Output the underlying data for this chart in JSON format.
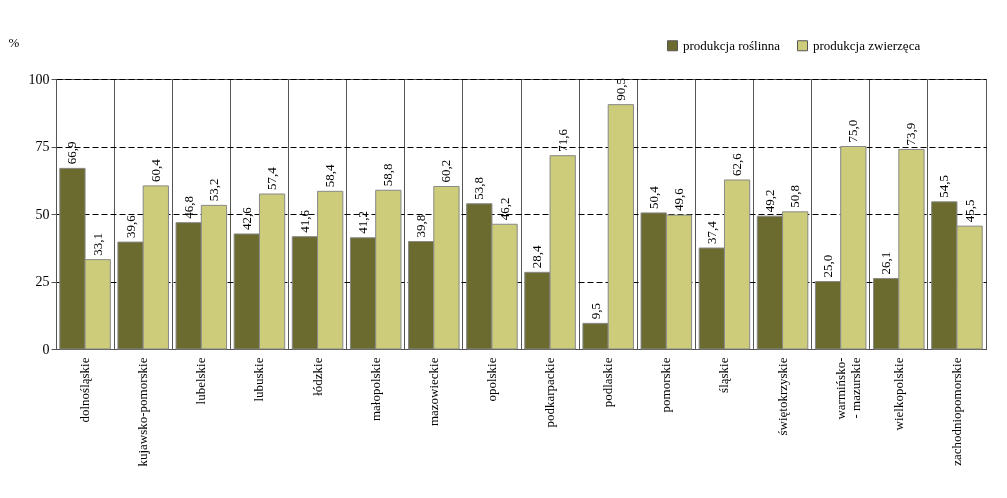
{
  "chart_data": {
    "type": "bar",
    "ylabel": "%",
    "categories": [
      "dolnośląskie",
      "kujawsko-pomorskie",
      "lubelskie",
      "lubuskie",
      "łódzkie",
      "małopolskie",
      "mazowieckie",
      "opolskie",
      "podkarpackie",
      "podlaskie",
      "pomorskie",
      "śląskie",
      "świętokrzyskie",
      "warmińsko-\n- mazurskie",
      "wielkopolskie",
      "zachodniopomorskie"
    ],
    "series": [
      {
        "name": "produkcja roślinna",
        "color": "#6b6b2f",
        "values": [
          66.9,
          39.6,
          46.8,
          42.6,
          41.6,
          41.2,
          39.8,
          53.8,
          28.4,
          9.5,
          50.4,
          37.4,
          49.2,
          25.0,
          26.1,
          54.5
        ],
        "value_labels": [
          "66,9",
          "39,6",
          "46,8",
          "42,6",
          "41,6",
          "41,2",
          "39,8",
          "53,8",
          "28,4",
          "9,5",
          "50,4",
          "37,4",
          "49,2",
          "25,0",
          "26,1",
          "54,5"
        ]
      },
      {
        "name": "produkcja zwierzęca",
        "color": "#cccc7a",
        "values": [
          33.1,
          60.4,
          53.2,
          57.4,
          58.4,
          58.8,
          60.2,
          46.2,
          71.6,
          90.5,
          49.6,
          62.6,
          50.8,
          75.0,
          73.9,
          45.5
        ],
        "value_labels": [
          "33,1",
          "60,4",
          "53,2",
          "57,4",
          "58,4",
          "58,8",
          "60,2",
          "46,2",
          "71,6",
          "90,5",
          "49,6",
          "62,6",
          "50,8",
          "75,0",
          "73,9",
          "45,5"
        ]
      }
    ],
    "ylim": [
      0,
      100
    ],
    "yticks": [
      0,
      25,
      50,
      75,
      100
    ],
    "grid": true,
    "legend": "top right"
  }
}
